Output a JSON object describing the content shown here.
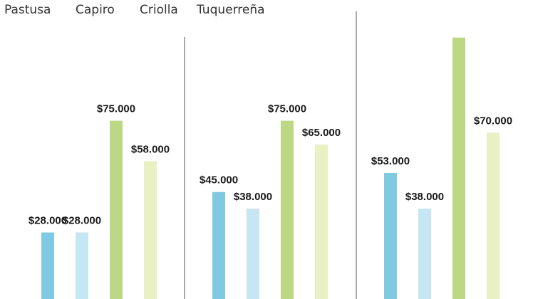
{
  "chart_data": {
    "type": "bar",
    "title": "",
    "xlabel": "",
    "ylabel": "",
    "legend": {
      "placement": "top-left",
      "items": [
        "Pastusa",
        "Capiro",
        "Criolla",
        "Tuquerreña"
      ]
    },
    "groups": [
      "",
      "",
      ""
    ],
    "series": [
      {
        "name": "Pastusa",
        "color": "#7fc9e2",
        "values": [
          28000,
          45000,
          53000
        ]
      },
      {
        "name": "Capiro",
        "color": "#c5e6f2",
        "values": [
          28000,
          38000,
          38000
        ]
      },
      {
        "name": "Criolla",
        "color": "#bcd884",
        "values": [
          75000,
          75000,
          110000
        ]
      },
      {
        "name": "Tuquerreña",
        "color": "#e8f0c4",
        "values": [
          58000,
          65000,
          70000
        ]
      }
    ],
    "value_labels": [
      [
        "$28.000",
        "$28.000",
        "$75.000",
        "$58.000"
      ],
      [
        "$45.000",
        "$38.000",
        "$75.000",
        "$65.000"
      ],
      [
        "$53.000",
        "$38.000",
        "",
        "$70.000"
      ]
    ],
    "ylim": [
      0,
      110000
    ],
    "grid": false
  }
}
